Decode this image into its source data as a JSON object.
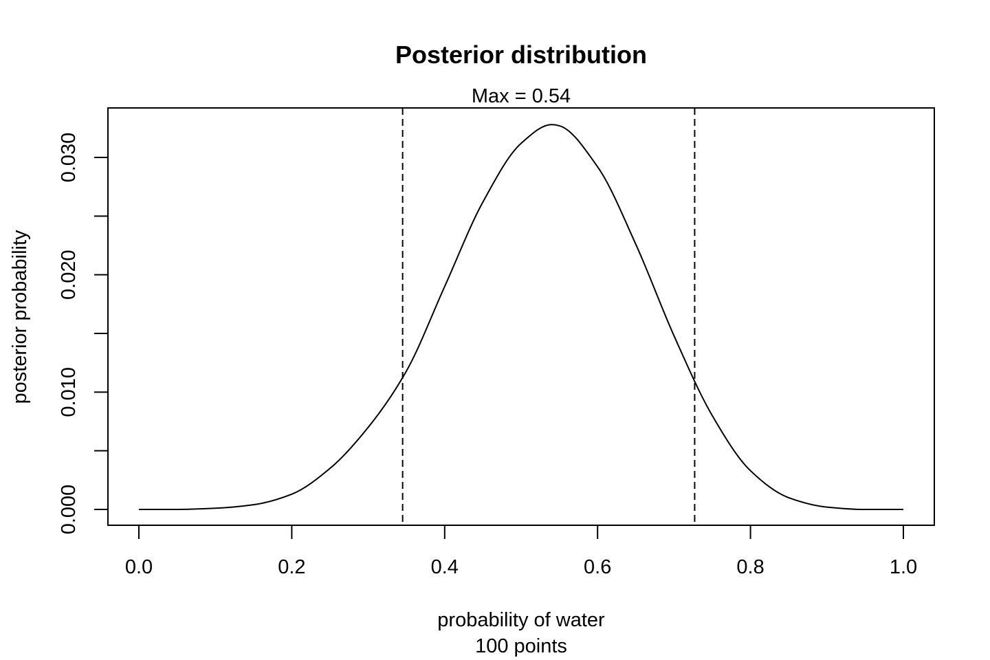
{
  "chart_data": {
    "type": "line",
    "title": "Posterior distribution",
    "subtitle": "Max = 0.54",
    "xlabel": "probability of water",
    "xlabel2": "100  points",
    "ylabel": "posterior probability",
    "xlim": [
      0,
      1
    ],
    "ylim": [
      0,
      0.033
    ],
    "x_ticks": [
      {
        "value": 0.0,
        "label": "0.0"
      },
      {
        "value": 0.2,
        "label": "0.2"
      },
      {
        "value": 0.4,
        "label": "0.4"
      },
      {
        "value": 0.6,
        "label": "0.6"
      },
      {
        "value": 0.8,
        "label": "0.8"
      },
      {
        "value": 1.0,
        "label": "1.0"
      }
    ],
    "y_ticks": [
      {
        "value": 0.0,
        "label": "0.000"
      },
      {
        "value": 0.005,
        "label": ""
      },
      {
        "value": 0.01,
        "label": "0.010"
      },
      {
        "value": 0.015,
        "label": ""
      },
      {
        "value": 0.02,
        "label": "0.020"
      },
      {
        "value": 0.025,
        "label": ""
      },
      {
        "value": 0.03,
        "label": "0.030"
      }
    ],
    "series": [
      {
        "x": [
          0.0,
          0.05,
          0.1,
          0.15,
          0.2,
          0.25,
          0.3,
          0.35,
          0.4,
          0.45,
          0.5,
          0.54,
          0.55,
          0.6,
          0.65,
          0.7,
          0.75,
          0.8,
          0.85,
          0.9,
          0.95,
          1.0
        ],
        "y": [
          0.0,
          0.0,
          0.0001,
          0.0004,
          0.0013,
          0.0035,
          0.007,
          0.0118,
          0.019,
          0.0262,
          0.0312,
          0.0328,
          0.0327,
          0.0292,
          0.0226,
          0.0148,
          0.008,
          0.0033,
          0.001,
          0.0002,
          0.0,
          0.0
        ]
      }
    ],
    "vlines": [
      0.345,
      0.727
    ],
    "grid": false,
    "line_color": "#000000"
  }
}
